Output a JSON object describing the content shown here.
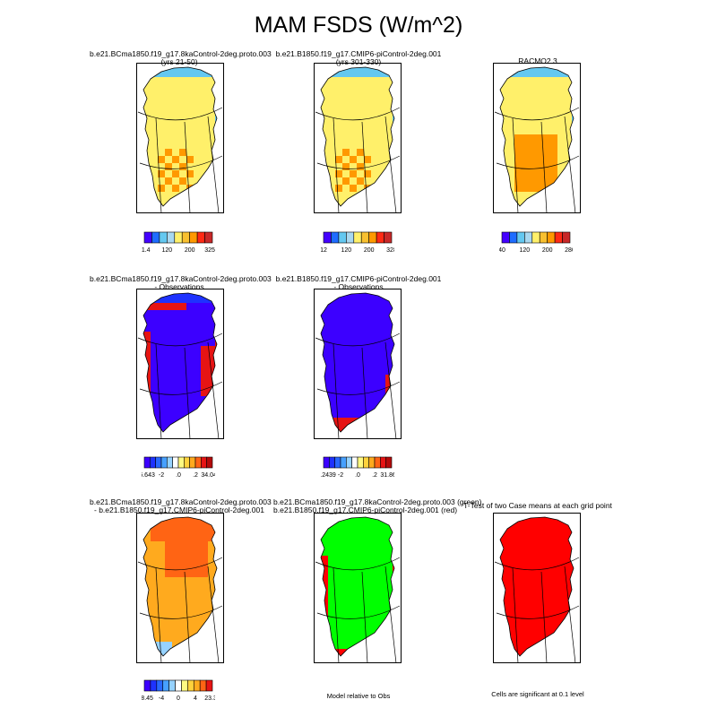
{
  "title": "MAM FSDS (W/m^2)",
  "panels": [
    {
      "line1": "b.e21.BCma1850.f19_g17.8kaControl-2deg.proto.003",
      "line2": "(yrs 21-50)"
    },
    {
      "line1": "b.e21.B1850.f19_g17.CMIP6-piControl-2deg.001",
      "line2": "(yrs 301-330)"
    },
    {
      "line1": "RACMO2.3",
      "line2": ""
    },
    {
      "line1": "b.e21.BCma1850.f19_g17.8kaControl-2deg.proto.003",
      "line2": "- Observations"
    },
    {
      "line1": "b.e21.B1850.f19_g17.CMIP6-piControl-2deg.001",
      "line2": "- Observations"
    },
    {
      "line1": "b.e21.BCma1850.f19_g17.8kaControl-2deg.proto.003",
      "line2": "- b.e21.B1850.f19_g17.CMIP6-piControl-2deg.001"
    },
    {
      "line1": "b.e21.BCma1850.f19_g17.8kaControl-2deg.proto.003 (green)",
      "line2": "b.e21.B1850.f19_g17.CMIP6-piControl-2deg.001 (red)"
    },
    {
      "line1": "T-Test of two Case means at each grid point",
      "line2": ""
    }
  ],
  "colorbars": [
    {
      "labels": [
        "11.4",
        "120",
        "200",
        "325.3"
      ]
    },
    {
      "labels": [
        "12",
        "120",
        "200",
        "328"
      ]
    },
    {
      "labels": [
        "40",
        "120",
        "200",
        "280"
      ]
    },
    {
      "labels": [
        "-46.643",
        "-2",
        ".0",
        ".2",
        "34.0451"
      ]
    },
    {
      "labels": [
        "-46.2439",
        "-2",
        ".0",
        ".2",
        "31.8674"
      ]
    },
    {
      "labels": [
        "-18.45",
        "-4",
        "0",
        "4",
        "23.37"
      ]
    }
  ],
  "notes": {
    "model_relative": "Model relative to Obs",
    "significance": "Cells are significant at 0.1 level"
  },
  "colors": {
    "abs_scale": [
      "#4400ff",
      "#1e6cff",
      "#64c8f0",
      "#a8d8f0",
      "#fff06a",
      "#f8c030",
      "#ff9900",
      "#ff2a14",
      "#c82828"
    ],
    "diff_scale": [
      "#3c00ff",
      "#1e32ff",
      "#2868ff",
      "#46a0ff",
      "#96d2ff",
      "#ffffff",
      "#fffa82",
      "#ffd23c",
      "#ffaa1e",
      "#ff6414",
      "#e61414",
      "#b40a0a"
    ],
    "green": "#00ff00",
    "red": "#ff0000"
  }
}
